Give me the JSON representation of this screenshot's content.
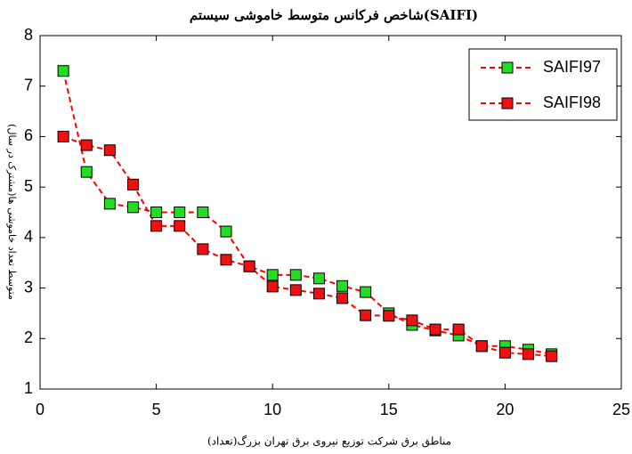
{
  "chart_data": {
    "type": "line",
    "title": "شاخص فرکانس متوسط خاموشی سیستم(SAIFI)",
    "x_label": "مناطق برق شرکت توزیع نیروی برق تهران بزرگ(تعداد)",
    "y_label": "متوسط تعداد خاموشی ها(مشترک در سال)",
    "x": [
      1,
      2,
      3,
      4,
      5,
      6,
      7,
      8,
      9,
      10,
      11,
      12,
      13,
      14,
      15,
      16,
      17,
      18,
      19,
      20,
      21,
      22
    ],
    "series": [
      {
        "name": "SAIFI97",
        "color": "#22dd22",
        "line_color": "#ff0000",
        "values": [
          7.3,
          5.3,
          4.67,
          4.6,
          4.5,
          4.5,
          4.5,
          4.12,
          3.43,
          3.26,
          3.26,
          3.19,
          3.04,
          2.92,
          2.5,
          2.27,
          2.16,
          2.06,
          1.85,
          1.85,
          1.78,
          1.69
        ]
      },
      {
        "name": "SAIFI98",
        "color": "#ee1111",
        "line_color": "#ff0000",
        "values": [
          6.0,
          5.83,
          5.73,
          5.05,
          4.23,
          4.23,
          3.77,
          3.56,
          3.43,
          3.03,
          2.96,
          2.89,
          2.8,
          2.46,
          2.45,
          2.36,
          2.18,
          2.18,
          1.85,
          1.72,
          1.69,
          1.65
        ]
      }
    ],
    "xlim": [
      0,
      25
    ],
    "xticks": [
      0,
      5,
      10,
      15,
      20,
      25
    ],
    "ylim": [
      1,
      8
    ],
    "yticks": [
      1,
      2,
      3,
      4,
      5,
      6,
      7,
      8
    ],
    "grid": false,
    "legend_position": "top-right"
  }
}
